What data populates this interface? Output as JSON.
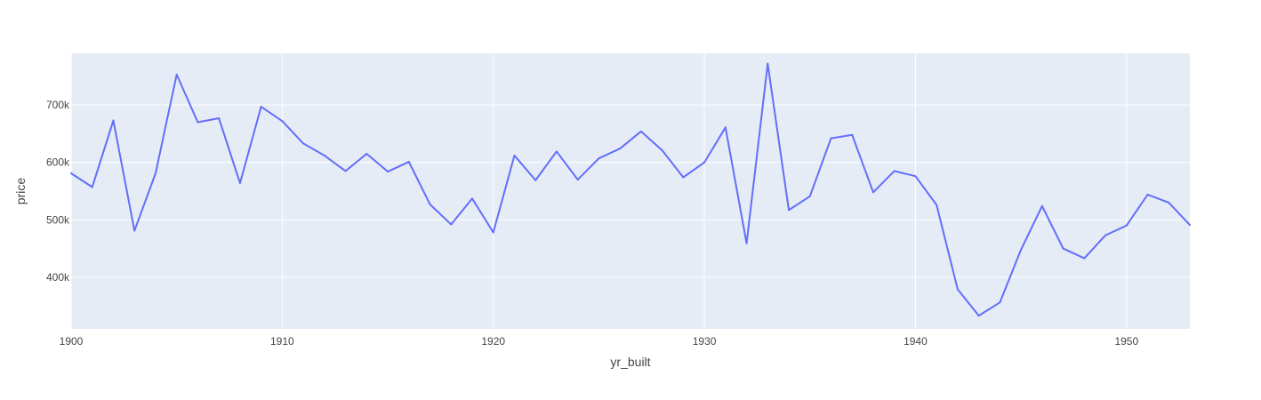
{
  "chart_data": {
    "type": "line",
    "xlabel": "yr_built",
    "ylabel": "price",
    "xlim": [
      1900,
      1953
    ],
    "ylim": [
      310000,
      790000
    ],
    "grid": true,
    "line_color": "#636efa",
    "plot_bgcolor": "#e5ecf6",
    "x_ticks": [
      {
        "value": 1900,
        "label": "1900"
      },
      {
        "value": 1910,
        "label": "1910"
      },
      {
        "value": 1920,
        "label": "1920"
      },
      {
        "value": 1930,
        "label": "1930"
      },
      {
        "value": 1940,
        "label": "1940"
      },
      {
        "value": 1950,
        "label": "1950"
      }
    ],
    "y_ticks": [
      {
        "value": 400000,
        "label": "400k"
      },
      {
        "value": 500000,
        "label": "500k"
      },
      {
        "value": 600000,
        "label": "600k"
      },
      {
        "value": 700000,
        "label": "700k"
      }
    ],
    "x": [
      1900,
      1901,
      1902,
      1903,
      1904,
      1905,
      1906,
      1907,
      1908,
      1909,
      1910,
      1911,
      1912,
      1913,
      1914,
      1915,
      1916,
      1917,
      1918,
      1919,
      1920,
      1921,
      1922,
      1923,
      1924,
      1925,
      1926,
      1927,
      1928,
      1929,
      1930,
      1931,
      1932,
      1933,
      1934,
      1935,
      1936,
      1937,
      1938,
      1939,
      1940,
      1941,
      1942,
      1943,
      1944,
      1945,
      1946,
      1947,
      1948,
      1949,
      1950,
      1951,
      1952,
      1953
    ],
    "y": [
      581000,
      557000,
      673000,
      481000,
      581000,
      753000,
      670000,
      677000,
      564000,
      697000,
      672000,
      633000,
      612000,
      585000,
      615000,
      584000,
      601000,
      527000,
      492000,
      537000,
      478000,
      612000,
      569000,
      619000,
      570000,
      607000,
      624000,
      654000,
      621000,
      574000,
      600000,
      661000,
      459000,
      772000,
      517000,
      541000,
      642000,
      648000,
      548000,
      585000,
      576000,
      526000,
      379000,
      333000,
      356000,
      448000,
      524000,
      450000,
      433000,
      473000,
      490000,
      544000,
      530000,
      491000
    ]
  }
}
